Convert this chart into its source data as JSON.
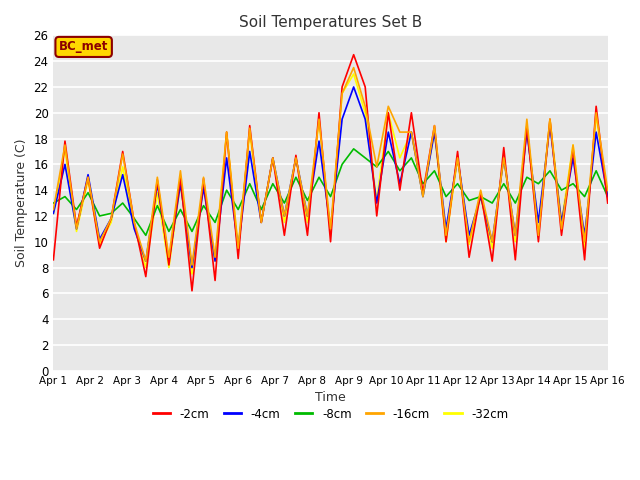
{
  "title": "Soil Temperatures Set B",
  "xlabel": "Time",
  "ylabel": "Soil Temperature (C)",
  "ylim": [
    0,
    26
  ],
  "yticks": [
    0,
    2,
    4,
    6,
    8,
    10,
    12,
    14,
    16,
    18,
    20,
    22,
    24,
    26
  ],
  "xlim": [
    0,
    15
  ],
  "xtick_labels": [
    "Apr 1",
    "Apr 2",
    "Apr 3",
    "Apr 4",
    "Apr 5",
    "Apr 6",
    "Apr 7",
    "Apr 8",
    "Apr 9",
    "Apr 10",
    "Apr 11",
    "Apr 12",
    "Apr 13",
    "Apr 14",
    "Apr 15",
    "Apr 16"
  ],
  "legend_label": "BC_met",
  "legend_box_facecolor": "#FFD700",
  "legend_box_edgecolor": "#8B0000",
  "legend_text_color": "#8B0000",
  "fig_facecolor": "#FFFFFF",
  "plot_facecolor": "#E8E8E8",
  "grid_color": "#FFFFFF",
  "series": {
    "2cm": {
      "color": "#FF0000",
      "label": "-2cm",
      "lw": 1.2,
      "zorder": 5
    },
    "4cm": {
      "color": "#0000FF",
      "label": "-4cm",
      "lw": 1.2,
      "zorder": 4
    },
    "8cm": {
      "color": "#00BB00",
      "label": "-8cm",
      "lw": 1.2,
      "zorder": 3
    },
    "16cm": {
      "color": "#FFA500",
      "label": "-16cm",
      "lw": 1.2,
      "zorder": 6
    },
    "32cm": {
      "color": "#FFFF00",
      "label": "-32cm",
      "lw": 1.2,
      "zorder": 2
    }
  },
  "t_2cm": [
    8.6,
    17.8,
    11.2,
    15.0,
    9.5,
    11.8,
    17.0,
    11.5,
    7.3,
    14.8,
    8.2,
    15.0,
    6.2,
    14.9,
    7.0,
    18.5,
    8.7,
    19.0,
    11.5,
    16.5,
    10.5,
    16.7,
    10.5,
    20.0,
    10.0,
    22.0,
    24.5,
    22.0,
    12.0,
    20.0,
    14.0,
    20.0,
    13.8,
    19.0,
    10.0,
    17.0,
    8.8,
    13.8,
    8.5,
    17.3,
    8.6,
    19.0,
    10.0,
    19.5,
    10.5,
    17.2,
    8.6,
    20.5,
    13.0
  ],
  "t_4cm": [
    12.2,
    16.0,
    11.0,
    15.2,
    10.2,
    11.8,
    15.2,
    11.0,
    8.5,
    14.5,
    8.5,
    14.5,
    8.0,
    14.2,
    8.5,
    16.5,
    9.5,
    17.0,
    11.5,
    16.5,
    12.0,
    16.5,
    12.0,
    17.8,
    11.0,
    19.5,
    22.0,
    19.5,
    13.0,
    18.5,
    14.5,
    18.5,
    13.5,
    18.5,
    11.0,
    16.5,
    10.5,
    13.5,
    10.0,
    16.5,
    10.5,
    18.5,
    11.5,
    19.0,
    11.5,
    16.5,
    10.5,
    18.5,
    13.5
  ],
  "t_8cm": [
    13.0,
    13.5,
    12.5,
    13.8,
    12.0,
    12.2,
    13.0,
    11.8,
    10.5,
    12.8,
    10.8,
    12.5,
    10.8,
    12.8,
    11.5,
    14.0,
    12.5,
    14.5,
    12.5,
    14.5,
    13.0,
    15.0,
    13.2,
    15.0,
    13.5,
    16.0,
    17.2,
    16.5,
    15.8,
    17.0,
    15.5,
    16.5,
    14.5,
    15.5,
    13.5,
    14.5,
    13.2,
    13.5,
    13.0,
    14.5,
    13.0,
    15.0,
    14.5,
    15.5,
    14.0,
    14.5,
    13.5,
    15.5,
    13.5
  ],
  "t_16cm": [
    12.5,
    17.5,
    11.0,
    15.0,
    10.0,
    11.8,
    16.8,
    11.5,
    8.5,
    15.0,
    8.8,
    15.5,
    8.2,
    15.0,
    8.8,
    18.5,
    9.5,
    18.8,
    11.5,
    16.5,
    12.0,
    16.5,
    12.0,
    19.5,
    11.0,
    21.5,
    23.5,
    20.5,
    15.8,
    20.5,
    18.5,
    18.5,
    13.5,
    19.0,
    10.5,
    16.5,
    10.0,
    14.0,
    10.0,
    16.5,
    10.5,
    19.5,
    10.5,
    19.5,
    11.0,
    17.5,
    10.0,
    20.0,
    14.0
  ],
  "t_32cm": [
    12.2,
    17.2,
    10.8,
    14.8,
    9.8,
    11.5,
    15.8,
    11.2,
    8.0,
    13.8,
    8.0,
    14.5,
    7.5,
    14.5,
    8.5,
    18.5,
    9.5,
    18.5,
    11.5,
    16.5,
    11.5,
    16.5,
    11.5,
    19.5,
    10.5,
    21.5,
    23.0,
    20.0,
    13.2,
    20.0,
    16.5,
    18.5,
    13.5,
    18.5,
    10.0,
    16.5,
    9.8,
    13.5,
    9.5,
    16.5,
    10.0,
    19.0,
    10.5,
    19.5,
    11.5,
    17.5,
    9.5,
    19.8,
    13.5
  ]
}
